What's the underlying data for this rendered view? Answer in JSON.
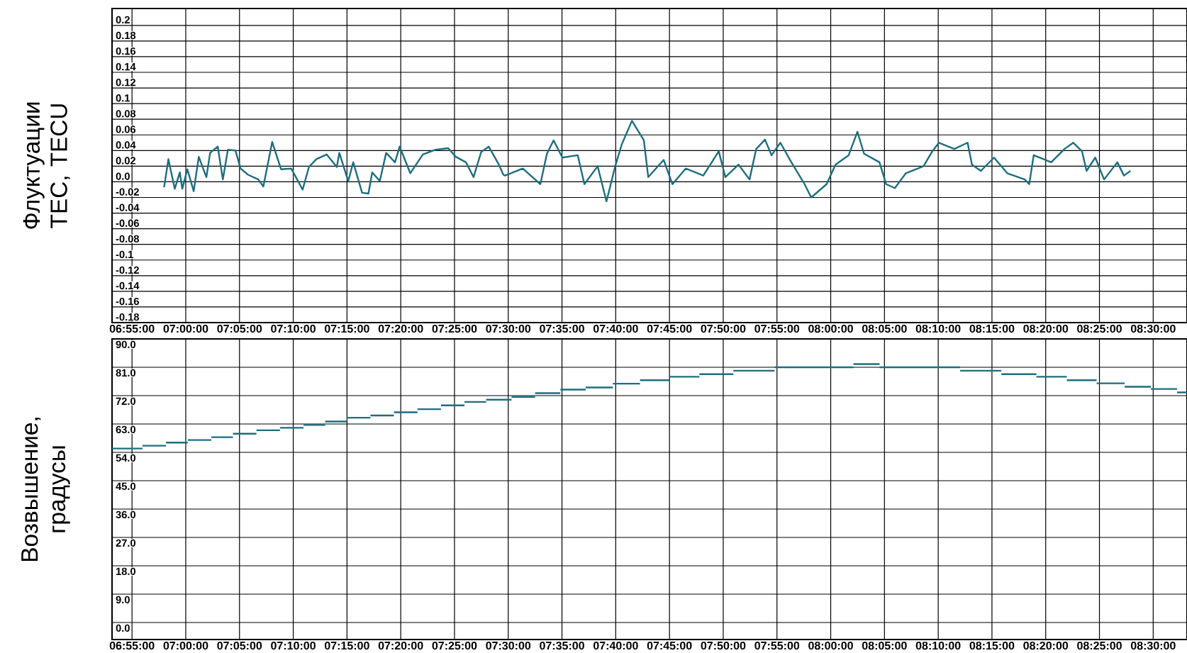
{
  "chart_data": [
    {
      "type": "line",
      "ylabel": "Флуктуации TEC, TECU",
      "color": "#1d6e80",
      "grid": true,
      "x": [
        6.9664,
        6.9731,
        6.9829,
        6.9908,
        6.9946,
        7.0025,
        7.0123,
        7.0202,
        7.032,
        7.0378,
        7.0496,
        7.0575,
        7.0653,
        7.0771,
        7.085,
        7.0967,
        7.1125,
        7.1203,
        7.134,
        7.1478,
        7.1635,
        7.1812,
        7.191,
        7.2027,
        7.2184,
        7.2342,
        7.2381,
        7.2519,
        7.2597,
        7.2734,
        7.2832,
        7.2891,
        7.3009,
        7.3107,
        7.3244,
        7.3316,
        7.3481,
        7.3676,
        7.3873,
        7.4069,
        7.4188,
        7.4344,
        7.4462,
        7.458,
        7.4698,
        7.4855,
        7.4925,
        7.4952,
        7.5225,
        7.5498,
        7.56,
        7.5703,
        7.584,
        7.6078,
        7.6181,
        7.6386,
        7.6523,
        7.6659,
        7.6761,
        7.6918,
        7.7103,
        7.7171,
        7.741,
        7.7546,
        7.7752,
        7.8024,
        7.8264,
        7.8366,
        7.8571,
        7.8741,
        7.8845,
        7.8981,
        7.9083,
        7.9219,
        7.939,
        7.9595,
        7.9698,
        7.9936,
        8.0074,
        8.0278,
        8.0414,
        8.0517,
        8.0756,
        8.0859,
        8.0995,
        8.1165,
        8.1439,
        8.1575,
        8.1678,
        8.1917,
        8.2122,
        8.219,
        8.2327,
        8.2532,
        8.2737,
        8.3009,
        8.3078,
        8.3147,
        8.3419,
        8.3624,
        8.3761,
        8.3897,
        8.3966,
        8.4102,
        8.4238,
        8.4444,
        8.4546,
        8.4648
      ],
      "values": [
        -0.007,
        0.029,
        -0.009,
        0.012,
        -0.009,
        0.016,
        -0.012,
        0.032,
        0.006,
        0.037,
        0.045,
        0.003,
        0.041,
        0.04,
        0.017,
        0.009,
        0.003,
        -0.006,
        0.051,
        0.016,
        0.017,
        -0.01,
        0.019,
        0.029,
        0.035,
        0.019,
        0.037,
        0.001,
        0.025,
        -0.014,
        -0.015,
        0.012,
        0.001,
        0.037,
        0.025,
        0.045,
        0.011,
        0.035,
        0.041,
        0.043,
        0.032,
        0.025,
        0.006,
        0.038,
        0.045,
        0.022,
        0.009,
        0.008,
        0.017,
        -0.003,
        0.036,
        0.053,
        0.031,
        0.034,
        -0.003,
        0.02,
        -0.025,
        0.02,
        0.048,
        0.078,
        0.053,
        0.006,
        0.028,
        -0.003,
        0.017,
        0.008,
        0.039,
        0.006,
        0.022,
        0.003,
        0.042,
        0.054,
        0.034,
        0.05,
        0.025,
        -0.003,
        -0.02,
        -0.003,
        0.022,
        0.034,
        0.064,
        0.036,
        0.025,
        -0.003,
        -0.008,
        0.011,
        0.02,
        0.039,
        0.05,
        0.042,
        0.05,
        0.022,
        0.014,
        0.031,
        0.011,
        0.003,
        -0.003,
        0.034,
        0.025,
        0.042,
        0.05,
        0.039,
        0.014,
        0.031,
        0.003,
        0.025,
        0.008,
        0.014
      ],
      "xlim": [
        6.8857,
        8.5524
      ],
      "xticks": [
        {
          "value": 6.916667,
          "label": "06:55:00"
        },
        {
          "value": 7.0,
          "label": "07:00:00"
        },
        {
          "value": 7.083333,
          "label": "07:05:00"
        },
        {
          "value": 7.166667,
          "label": "07:10:00"
        },
        {
          "value": 7.25,
          "label": "07:15:00"
        },
        {
          "value": 7.333333,
          "label": "07:20:00"
        },
        {
          "value": 7.416667,
          "label": "07:25:00"
        },
        {
          "value": 7.5,
          "label": "07:30:00"
        },
        {
          "value": 7.583333,
          "label": "07:35:00"
        },
        {
          "value": 7.666667,
          "label": "07:40:00"
        },
        {
          "value": 7.75,
          "label": "07:45:00"
        },
        {
          "value": 7.833333,
          "label": "07:50:00"
        },
        {
          "value": 7.916667,
          "label": "07:55:00"
        },
        {
          "value": 8.0,
          "label": "08:00:00"
        },
        {
          "value": 8.083333,
          "label": "08:05:00"
        },
        {
          "value": 8.166667,
          "label": "08:10:00"
        },
        {
          "value": 8.25,
          "label": "08:15:00"
        },
        {
          "value": 8.333333,
          "label": "08:20:00"
        },
        {
          "value": 8.416667,
          "label": "08:25:00"
        },
        {
          "value": 8.5,
          "label": "08:30:00"
        }
      ],
      "ylim": [
        -0.18,
        0.2216
      ],
      "yticks": [
        0.2,
        0.18,
        0.16,
        0.14,
        0.12,
        0.1,
        0.08,
        0.06,
        0.04,
        0.02,
        {
          "value": 0,
          "label": "0.0"
        },
        -0.02,
        -0.04,
        -0.06,
        -0.08,
        -0.1,
        -0.12,
        -0.14,
        -0.16,
        -0.18
      ]
    },
    {
      "type": "step",
      "ylabel": "Возвышение, градусы",
      "color": "#1d6e80",
      "grid": true,
      "x": [
        6.8857,
        6.9329,
        6.9694,
        7.0031,
        7.0396,
        7.0732,
        7.1096,
        7.1461,
        7.1826,
        7.2162,
        7.2499,
        7.2863,
        7.3228,
        7.3593,
        7.3957,
        7.4322,
        7.4658,
        7.5051,
        7.5416,
        7.5808,
        7.6201,
        7.6622,
        7.7043,
        7.7502,
        7.7964,
        7.8491,
        7.913,
        8.0352,
        8.0758,
        8.2006,
        8.2646,
        8.3189,
        8.3661,
        8.4123,
        8.4557,
        8.4964,
        8.5371,
        8.5524
      ],
      "values": [
        55.2,
        56.1,
        57.1,
        57.9,
        58.8,
        59.9,
        61.0,
        61.8,
        62.7,
        63.8,
        65.0,
        65.7,
        66.7,
        67.7,
        68.9,
        70.0,
        70.7,
        71.6,
        72.8,
        73.9,
        74.6,
        75.8,
        76.9,
        78.0,
        78.8,
        79.9,
        81.0,
        82.0,
        81.0,
        79.9,
        78.8,
        78.0,
        76.9,
        75.9,
        74.8,
        74.1,
        73.0,
        73.0
      ],
      "xlim": [
        6.8857,
        8.5524
      ],
      "xticks": [
        {
          "value": 6.916667,
          "label": "06:55:00"
        },
        {
          "value": 7.0,
          "label": "07:00:00"
        },
        {
          "value": 7.083333,
          "label": "07:05:00"
        },
        {
          "value": 7.166667,
          "label": "07:10:00"
        },
        {
          "value": 7.25,
          "label": "07:15:00"
        },
        {
          "value": 7.333333,
          "label": "07:20:00"
        },
        {
          "value": 7.416667,
          "label": "07:25:00"
        },
        {
          "value": 7.5,
          "label": "07:30:00"
        },
        {
          "value": 7.583333,
          "label": "07:35:00"
        },
        {
          "value": 7.666667,
          "label": "07:40:00"
        },
        {
          "value": 7.75,
          "label": "07:45:00"
        },
        {
          "value": 7.833333,
          "label": "07:50:00"
        },
        {
          "value": 7.916667,
          "label": "07:55:00"
        },
        {
          "value": 8.0,
          "label": "08:00:00"
        },
        {
          "value": 8.083333,
          "label": "08:05:00"
        },
        {
          "value": 8.166667,
          "label": "08:10:00"
        },
        {
          "value": 8.25,
          "label": "08:15:00"
        },
        {
          "value": 8.333333,
          "label": "08:20:00"
        },
        {
          "value": 8.416667,
          "label": "08:25:00"
        },
        {
          "value": 8.5,
          "label": "08:30:00"
        }
      ],
      "ylim": [
        -5.4,
        90
      ],
      "yticks": [
        {
          "value": 90,
          "label": "90.0"
        },
        {
          "value": 81,
          "label": "81.0"
        },
        {
          "value": 72,
          "label": "72.0"
        },
        {
          "value": 63,
          "label": "63.0"
        },
        {
          "value": 54,
          "label": "54.0"
        },
        {
          "value": 45,
          "label": "45.0"
        },
        {
          "value": 36,
          "label": "36.0"
        },
        {
          "value": 27,
          "label": "27.0"
        },
        {
          "value": 18,
          "label": "18.0"
        },
        {
          "value": 9,
          "label": "9.0"
        },
        {
          "value": 0,
          "label": "0.0"
        }
      ]
    }
  ]
}
